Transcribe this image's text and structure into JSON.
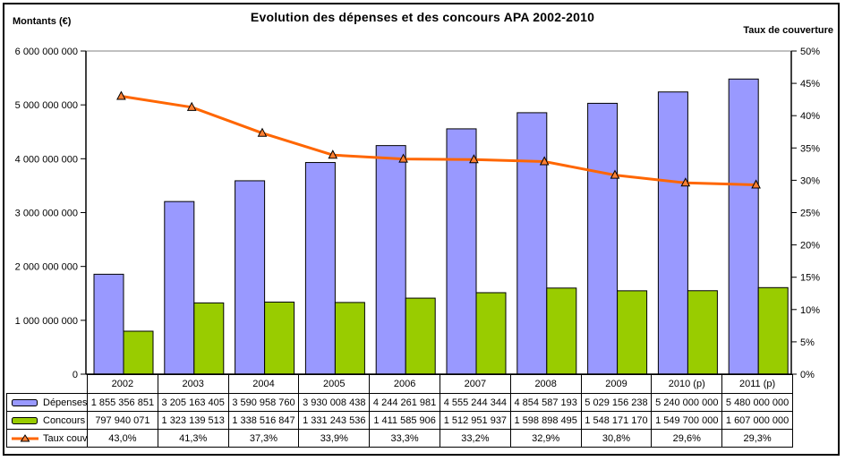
{
  "title": "Evolution des dépenses et des concours APA 2002-2010",
  "left_axis_title": "Montants (€)",
  "right_axis_title": "Taux de couverture",
  "colors": {
    "depenses_bar": "#9999FF",
    "concours_bar": "#99CC00",
    "taux_line": "#FF6600",
    "marker_fill": "#FF8033",
    "bar_border": "#000000",
    "plot_top_border": "#808080",
    "axis": "#000000"
  },
  "chart_data": {
    "type": "bar",
    "subtype": "combo-bar-line",
    "title": "Evolution des dépenses et des concours APA 2002-2010",
    "grid": false,
    "legend_position": "data-table-left",
    "categories": [
      "2002",
      "2003",
      "2004",
      "2005",
      "2006",
      "2007",
      "2008",
      "2009",
      "2010 (p)",
      "2011 (p)"
    ],
    "series": [
      {
        "name": "Dépenses",
        "kind": "bar",
        "axis": "left",
        "color": "#9999FF",
        "values": [
          1855356851,
          3205163405,
          3590958760,
          3930008438,
          4244261981,
          4555244344,
          4854587193,
          5029156238,
          5240000000,
          5480000000
        ],
        "labels": [
          "1 855 356 851",
          "3 205 163 405",
          "3 590 958 760",
          "3 930 008 438",
          "4 244 261 981",
          "4 555 244 344",
          "4 854 587 193",
          "5 029 156 238",
          "5 240 000 000",
          "5 480 000 000"
        ]
      },
      {
        "name": "Concours",
        "kind": "bar",
        "axis": "left",
        "color": "#99CC00",
        "values": [
          797940071,
          1323139513,
          1338516847,
          1331243536,
          1411585906,
          1512951937,
          1598898495,
          1548171170,
          1549700000,
          1607000000
        ],
        "labels": [
          "797 940 071",
          "1 323 139 513",
          "1 338 516 847",
          "1 331 243 536",
          "1 411 585 906",
          "1 512 951 937",
          "1 598 898 495",
          "1 548 171 170",
          "1 549 700 000",
          "1 607 000 000"
        ]
      },
      {
        "name": "Taux couv.",
        "kind": "line",
        "axis": "right",
        "color": "#FF6600",
        "values": [
          43.0,
          41.3,
          37.3,
          33.9,
          33.3,
          33.2,
          32.9,
          30.8,
          29.6,
          29.3
        ],
        "labels": [
          "43,0%",
          "41,3%",
          "37,3%",
          "33,9%",
          "33,3%",
          "33,2%",
          "32,9%",
          "30,8%",
          "29,6%",
          "29,3%"
        ]
      }
    ],
    "left_axis": {
      "label": "Montants (€)",
      "min": 0,
      "max": 6000000000,
      "step": 1000000000,
      "tick_labels_top_down": [
        "6 000 000 000",
        "5 000 000 000",
        "4 000 000 000",
        "3 000 000 000",
        "2 000 000 000",
        "1 000 000 000",
        "0"
      ]
    },
    "right_axis": {
      "label": "Taux de couverture",
      "min": 0,
      "max": 50,
      "step": 5,
      "tick_labels_top_down": [
        "50%",
        "45%",
        "40%",
        "35%",
        "30%",
        "25%",
        "20%",
        "15%",
        "10%",
        "5%",
        "0%"
      ]
    }
  }
}
